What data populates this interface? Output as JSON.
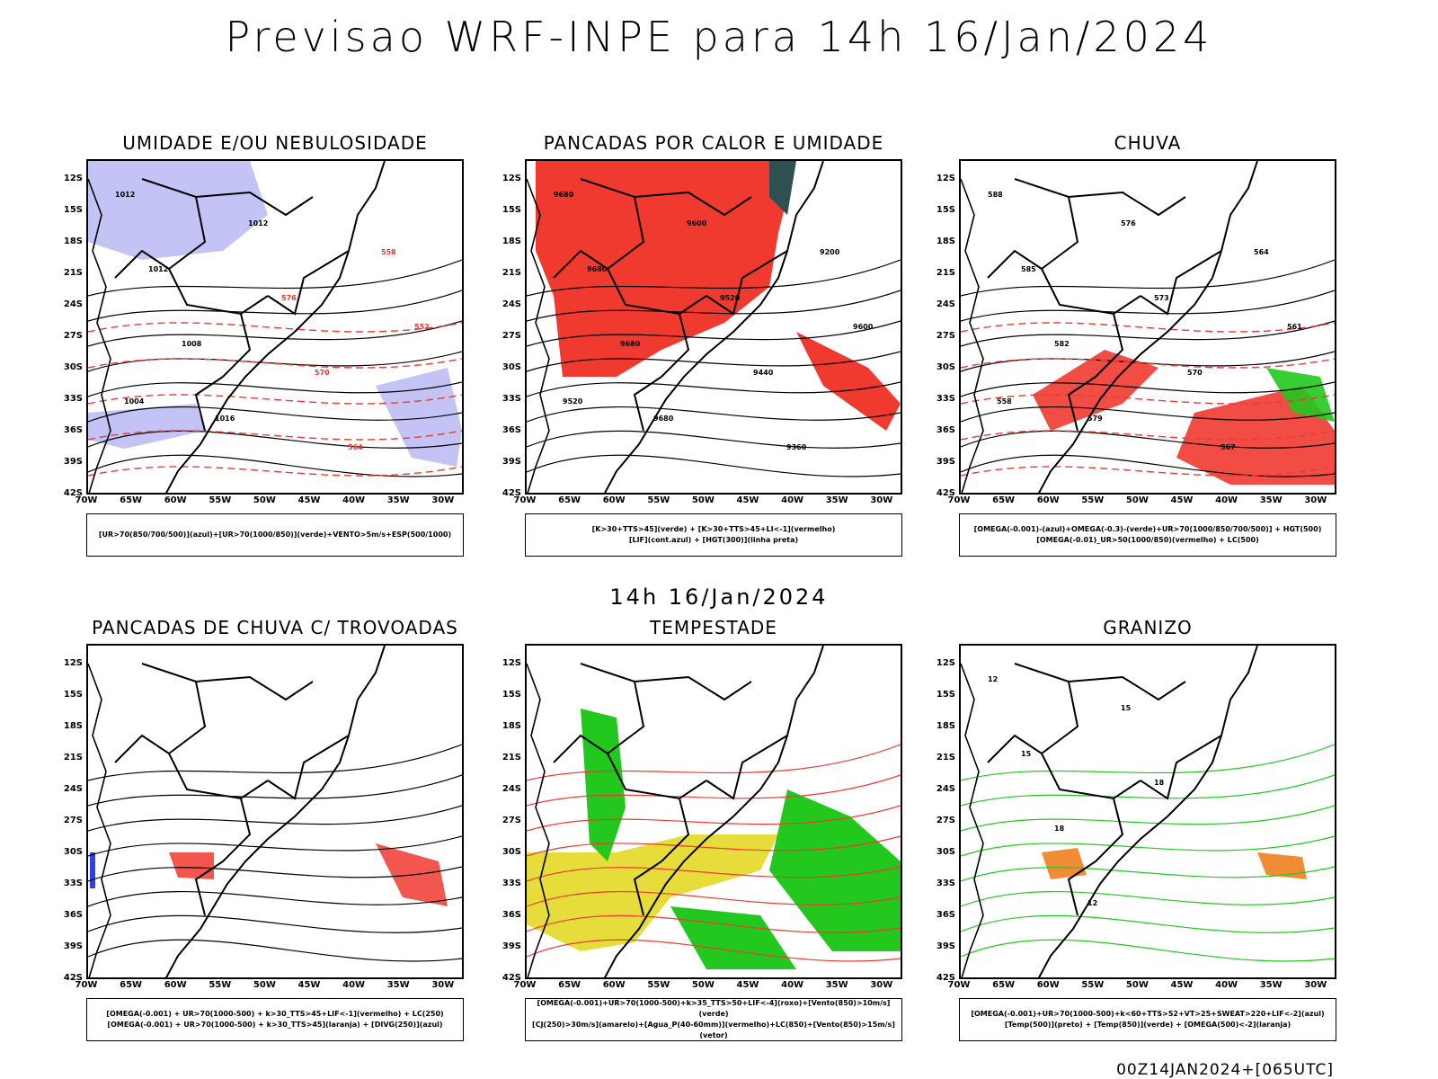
{
  "main_title": "Previsao WRF-INPE  para 14h 16/Jan/2024",
  "middle_title": "14h 16/Jan/2024",
  "footer": "00Z14JAN2024+[065UTC]",
  "lat_ticks": [
    "12S",
    "15S",
    "18S",
    "21S",
    "24S",
    "27S",
    "30S",
    "33S",
    "36S",
    "39S",
    "42S"
  ],
  "lon_ticks": [
    "70W",
    "65W",
    "60W",
    "55W",
    "50W",
    "45W",
    "40W",
    "35W",
    "30W"
  ],
  "panels": [
    {
      "title": "UMIDADE E/OU NEBULOSIDADE",
      "legend": [
        "[UR>70(850/700/500)](azul)+[UR>70(1000/850)](verde)+VENTO>5m/s+ESP(500/1000)"
      ],
      "contour_labels": [
        "1012",
        "1012",
        "1008",
        "1016",
        "1012",
        "576",
        "570",
        "564",
        "558",
        "552",
        "1004"
      ]
    },
    {
      "title": "PANCADAS POR CALOR E UMIDADE",
      "legend": [
        "[K>30+TTS>45](verde) + [K>30+TTS>45+LI<-1](vermelho)",
        "[LIF](cont.azul) + [HGT(300)](linha preta)"
      ],
      "contour_labels": [
        "9680",
        "9680",
        "9680",
        "9680",
        "9600",
        "9520",
        "9440",
        "9360",
        "9200",
        "9600",
        "9520"
      ]
    },
    {
      "title": "CHUVA",
      "legend": [
        "[OMEGA(-0.001)-(azul)+OMEGA(-0.3)-(verde)+UR>70(1000/850/700/500)] + HGT(500)",
        "[OMEGA(-0.01)_UR>50(1000/850)(vermelho) + LC(500)"
      ],
      "contour_labels": [
        "588",
        "585",
        "582",
        "579",
        "576",
        "573",
        "570",
        "567",
        "564",
        "561",
        "558"
      ]
    },
    {
      "title": "PANCADAS DE CHUVA C/ TROVOADAS",
      "legend": [
        "[OMEGA(-0.001) + UR>70(1000-500) + k>30_TTS>45+LIF<-1](vermelho) + LC(250)",
        "[OMEGA(-0.001) + UR>70(1000-500) + k>30_TTS>45](laranja) + [DIVG(250)](azul)"
      ],
      "contour_labels": []
    },
    {
      "title": "TEMPESTADE",
      "legend": [
        "[OMEGA(-0.001)+UR>70(1000-500)+k>35_TTS>50+LIF<-4](roxo)+[Vento(850)>10m/s](verde)",
        "[CJ(250)>30m/s](amarelo)+[Agua_P(40-60mm)](vermelho)+LC(850)+[Vento(850)>15m/s](vetor)"
      ],
      "contour_labels": []
    },
    {
      "title": "GRANIZO",
      "legend": [
        "[OMEGA(-0.001)+UR>70(1000-500)+k<60+TTS>52+VT>25+SWEAT>220+LIF<-2](azul)",
        "[Temp(500)](preto) + [Temp(850)](verde) + [OMEGA(500)<-2](laranja)"
      ],
      "contour_labels": [
        "12",
        "15",
        "18",
        "12",
        "15",
        "18"
      ]
    }
  ],
  "colors": {
    "red": "#f03a30",
    "green": "#22c81e",
    "blue": "#3040e8",
    "lavender": "#b4b4f4",
    "yellow": "#e6dc3a",
    "teal": "#2f5050",
    "orange": "#f08020"
  }
}
